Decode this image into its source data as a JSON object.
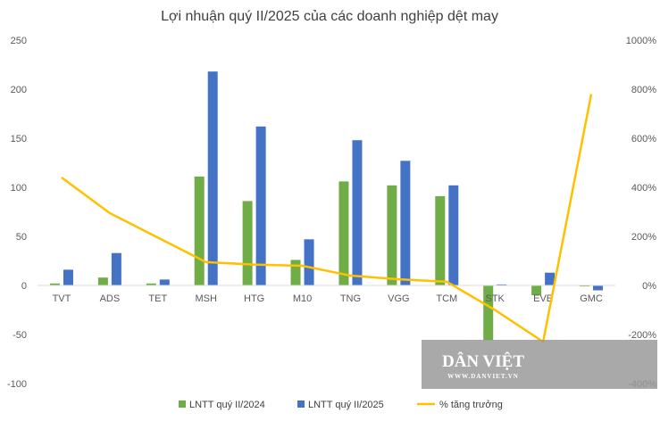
{
  "chart_data": {
    "type": "bar",
    "title": "Lợi nhuận quý II/2025 của các doanh nghiệp dệt may",
    "categories": [
      "TVT",
      "ADS",
      "TET",
      "MSH",
      "HTG",
      "M10",
      "TNG",
      "VGG",
      "TCM",
      "STK",
      "EVE",
      "GMC"
    ],
    "series": [
      {
        "name": "LNTT quý II/2024",
        "type": "bar",
        "axis": "left",
        "color": "#70AD47",
        "values": [
          2,
          8,
          2,
          111,
          86,
          26,
          106,
          102,
          91,
          -56,
          -10,
          -1
        ]
      },
      {
        "name": "LNTT quý II/2025",
        "type": "bar",
        "axis": "left",
        "color": "#4472C4",
        "values": [
          16,
          33,
          6,
          218,
          162,
          47,
          148,
          127,
          102,
          1,
          13,
          -5
        ]
      },
      {
        "name": "% tăng trưởng",
        "type": "line",
        "axis": "right",
        "color": "#FFC000",
        "values": [
          440,
          295,
          195,
          95,
          85,
          80,
          40,
          25,
          15,
          -100,
          -230,
          780
        ]
      }
    ],
    "ylim": [
      -100,
      250
    ],
    "yticks": [
      "250",
      "200",
      "150",
      "100",
      "50",
      "0",
      "-50",
      "-100"
    ],
    "y2lim": [
      -400,
      1000
    ],
    "y2ticks": [
      "1000%",
      "800%",
      "600%",
      "400%",
      "200%",
      "0%",
      "-200%",
      "-400%"
    ],
    "legend_position": "bottom",
    "grid": false
  },
  "watermark": {
    "text": "DÂN VIỆT",
    "subtext": "WWW.DANVIET.VN"
  }
}
